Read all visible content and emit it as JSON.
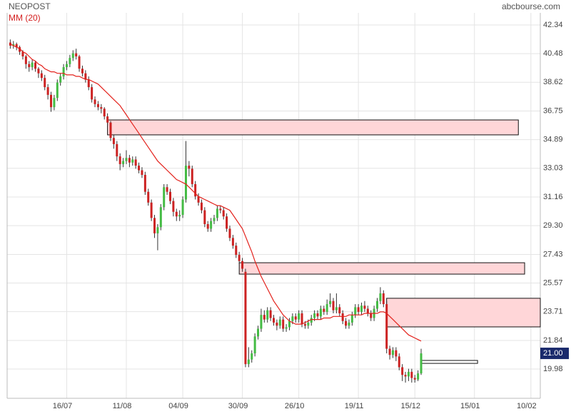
{
  "chart_data": {
    "type": "candlestick",
    "title": "NEOPOST",
    "source": "abcbourse.com",
    "up_color": "#44bb44",
    "down_color": "#cc2222",
    "open": [
      41.2,
      41.0,
      41.1,
      40.9,
      40.6,
      40.3,
      39.8,
      39.6,
      39.9,
      39.5,
      39.2,
      38.9,
      38.3,
      37.8,
      37.0,
      37.6,
      38.6,
      39.0,
      39.6,
      39.8,
      40.2,
      40.5,
      40.3,
      39.5,
      39.2,
      38.8,
      38.3,
      37.5,
      37.2,
      37.0,
      36.9,
      36.4,
      36.0,
      35.0,
      34.6,
      33.8,
      33.3,
      33.5,
      33.7,
      33.4,
      33.6,
      33.2,
      32.9,
      32.6,
      31.5,
      30.8,
      29.8,
      28.8,
      29.2,
      30.5,
      31.8,
      31.5,
      30.9,
      30.2,
      29.9,
      30.0,
      31.0,
      33.2,
      33.0,
      32.0,
      31.2,
      30.8,
      30.3,
      29.4,
      29.1,
      29.6,
      29.8,
      30.4,
      30.3,
      29.9,
      29.1,
      28.5,
      28.0,
      27.4,
      27.0,
      26.3,
      20.3,
      20.6,
      21.0,
      22.1,
      22.6,
      23.5,
      23.2,
      23.8,
      23.3,
      23.0,
      22.8,
      23.2,
      22.6,
      22.7,
      23.1,
      23.4,
      23.2,
      23.6,
      22.9,
      22.8,
      23.0,
      23.3,
      23.6,
      23.4,
      23.9,
      23.7,
      24.2,
      24.4,
      23.8,
      24.0,
      23.6,
      23.1,
      22.8,
      23.0,
      23.5,
      24.0,
      23.7,
      24.1,
      23.9,
      23.6,
      23.3,
      23.9,
      24.4,
      24.9,
      24.2,
      21.3,
      20.9,
      21.2,
      20.8,
      20.1,
      19.6,
      19.5,
      19.8,
      19.4,
      19.3,
      19.7
    ],
    "high": [
      41.4,
      41.3,
      41.2,
      41.0,
      40.7,
      40.4,
      40.0,
      40.1,
      40.0,
      39.6,
      39.4,
      39.1,
      38.5,
      38.0,
      37.8,
      38.8,
      39.2,
      39.8,
      40.0,
      40.4,
      40.7,
      40.8,
      40.4,
      39.7,
      39.4,
      39.0,
      38.5,
      37.7,
      37.4,
      37.2,
      37.0,
      36.6,
      36.1,
      35.2,
      34.8,
      34.0,
      33.7,
      34.2,
      33.9,
      33.8,
      33.8,
      33.4,
      33.1,
      32.8,
      31.7,
      31.0,
      30.0,
      29.4,
      30.7,
      32.0,
      32.0,
      31.7,
      31.1,
      30.4,
      30.3,
      31.2,
      34.8,
      33.5,
      33.2,
      32.2,
      31.4,
      31.0,
      30.5,
      29.6,
      29.8,
      30.0,
      30.6,
      30.6,
      30.5,
      30.1,
      29.3,
      28.7,
      28.2,
      27.6,
      27.2,
      26.5,
      21.4,
      21.2,
      22.3,
      22.8,
      23.9,
      23.8,
      24.0,
      24.0,
      23.5,
      23.2,
      23.4,
      23.4,
      22.9,
      23.3,
      23.6,
      23.6,
      23.8,
      23.8,
      23.1,
      23.2,
      23.5,
      23.8,
      23.8,
      24.1,
      24.1,
      24.5,
      24.9,
      24.6,
      24.9,
      24.2,
      23.8,
      23.3,
      23.2,
      23.7,
      24.2,
      24.2,
      24.3,
      24.4,
      24.1,
      23.8,
      24.1,
      24.6,
      25.3,
      25.1,
      24.4,
      21.5,
      21.4,
      21.4,
      21.0,
      20.3,
      19.8,
      20.0,
      20.0,
      19.6,
      19.9,
      21.3
    ],
    "low": [
      40.8,
      40.8,
      40.7,
      40.4,
      40.1,
      39.5,
      39.3,
      39.4,
      39.3,
      38.9,
      38.7,
      38.1,
      37.5,
      36.7,
      36.8,
      37.4,
      38.4,
      38.8,
      39.4,
      39.6,
      40.0,
      40.1,
      39.3,
      39.0,
      38.6,
      38.1,
      37.3,
      37.0,
      36.8,
      36.6,
      36.2,
      35.8,
      34.8,
      34.3,
      33.5,
      32.9,
      33.1,
      33.3,
      33.1,
      33.2,
      33.0,
      32.7,
      32.4,
      31.3,
      30.6,
      29.6,
      28.5,
      27.7,
      29.0,
      30.3,
      31.3,
      30.7,
      29.9,
      29.6,
      29.6,
      29.8,
      30.8,
      32.5,
      31.8,
      31.0,
      30.6,
      30.1,
      29.2,
      28.9,
      28.9,
      29.4,
      29.6,
      30.1,
      29.7,
      28.9,
      28.3,
      27.8,
      27.2,
      26.8,
      26.3,
      20.1,
      20.1,
      20.4,
      20.8,
      21.9,
      22.4,
      23.0,
      23.0,
      23.1,
      22.8,
      22.5,
      22.6,
      22.4,
      22.4,
      22.5,
      22.9,
      23.0,
      23.0,
      22.7,
      22.6,
      22.6,
      22.8,
      23.1,
      23.2,
      23.2,
      23.5,
      23.5,
      24.0,
      23.6,
      23.6,
      23.4,
      22.9,
      22.6,
      22.6,
      22.8,
      23.3,
      23.5,
      23.5,
      23.7,
      23.4,
      23.1,
      23.1,
      23.7,
      24.2,
      24.0,
      21.0,
      20.6,
      20.7,
      20.5,
      19.9,
      19.2,
      19.1,
      19.2,
      19.1,
      19.1,
      19.2,
      19.6
    ],
    "close": [
      41.0,
      41.1,
      40.9,
      40.6,
      40.3,
      39.8,
      39.6,
      39.9,
      39.5,
      39.2,
      38.9,
      38.3,
      37.8,
      37.0,
      37.6,
      38.6,
      39.0,
      39.6,
      39.8,
      40.2,
      40.5,
      40.3,
      39.5,
      39.2,
      38.8,
      38.3,
      37.5,
      37.2,
      37.0,
      36.9,
      36.4,
      36.0,
      35.0,
      34.6,
      33.8,
      33.3,
      33.5,
      33.7,
      33.4,
      33.6,
      33.2,
      32.9,
      32.6,
      31.5,
      30.8,
      29.8,
      28.8,
      29.2,
      30.5,
      31.8,
      31.5,
      30.9,
      30.2,
      29.9,
      30.0,
      31.0,
      33.2,
      33.0,
      32.0,
      31.2,
      30.8,
      30.3,
      29.4,
      29.1,
      29.6,
      29.8,
      30.4,
      30.3,
      29.9,
      29.1,
      28.5,
      28.0,
      27.4,
      27.0,
      26.5,
      20.3,
      20.6,
      21.0,
      22.1,
      22.6,
      23.5,
      23.2,
      23.8,
      23.3,
      23.0,
      22.8,
      23.2,
      22.6,
      22.7,
      23.1,
      23.4,
      23.2,
      23.6,
      22.9,
      22.8,
      23.0,
      23.3,
      23.6,
      23.4,
      23.9,
      23.7,
      24.2,
      24.4,
      23.8,
      24.0,
      23.6,
      23.1,
      22.8,
      23.0,
      23.5,
      24.0,
      23.7,
      24.1,
      23.9,
      23.6,
      23.3,
      23.9,
      24.4,
      24.9,
      24.2,
      21.3,
      20.9,
      21.2,
      20.8,
      20.1,
      19.6,
      19.5,
      19.8,
      19.4,
      19.3,
      19.7,
      21.0
    ],
    "series": [
      {
        "name": "MM (20)",
        "color": "#e3221c",
        "values": [
          41.1,
          41.0,
          40.9,
          40.8,
          40.6,
          40.5,
          40.3,
          40.1,
          40.0,
          39.8,
          39.7,
          39.5,
          39.4,
          39.3,
          39.3,
          39.2,
          39.2,
          39.2,
          39.1,
          39.1,
          39.1,
          39.0,
          39.0,
          38.9,
          38.8,
          38.8,
          38.7,
          38.6,
          38.5,
          38.3,
          38.1,
          37.9,
          37.7,
          37.5,
          37.3,
          37.1,
          36.8,
          36.5,
          36.2,
          35.9,
          35.6,
          35.3,
          35.0,
          34.7,
          34.4,
          34.1,
          33.8,
          33.5,
          33.3,
          33.1,
          32.9,
          32.7,
          32.5,
          32.3,
          32.2,
          32.1,
          32.0,
          31.8,
          31.6,
          31.4,
          31.2,
          31.1,
          31.0,
          30.9,
          30.8,
          30.7,
          30.6,
          30.6,
          30.5,
          30.4,
          30.3,
          30.0,
          29.7,
          29.4,
          29.1,
          28.6,
          28.1,
          27.6,
          27.0,
          26.5,
          26.0,
          25.6,
          25.2,
          24.8,
          24.4,
          24.1,
          23.8,
          23.5,
          23.3,
          23.1,
          23.0,
          22.9,
          22.9,
          22.9,
          23.0,
          23.1,
          23.2,
          23.2,
          23.2,
          23.2,
          23.3,
          23.3,
          23.3,
          23.4,
          23.4,
          23.4,
          23.4,
          23.4,
          23.5,
          23.5,
          23.5,
          23.5,
          23.5,
          23.6,
          23.6,
          23.6,
          23.6,
          23.6,
          23.7,
          23.7,
          23.6,
          23.4,
          23.2,
          23.0,
          22.8,
          22.6,
          22.4,
          22.2,
          22.1,
          22.0,
          21.9,
          21.8
        ]
      }
    ],
    "zones": [
      {
        "x": [
          31,
          162
        ],
        "y": [
          35.2,
          36.17
        ],
        "color": "#ffd6d8"
      },
      {
        "x": [
          73,
          164
        ],
        "y": [
          26.15,
          26.89
        ],
        "color": "#ffd6d8"
      },
      {
        "x": [
          120,
          169
        ],
        "y": [
          22.72,
          24.58
        ],
        "color": "#ffd6d8"
      },
      {
        "x": [
          131,
          149
        ],
        "y": [
          20.35,
          20.54
        ],
        "color": "#ffffff"
      }
    ],
    "last_value": {
      "value": 21.0,
      "label": "21.00"
    },
    "xlim": [
      -1,
      169
    ],
    "ylim": [
      18.08,
      43.13
    ],
    "xticks": [
      {
        "value": 18,
        "label": "16/07"
      },
      {
        "value": 37,
        "label": "11/08"
      },
      {
        "value": 55,
        "label": "04/09"
      },
      {
        "value": 74,
        "label": "30/09"
      },
      {
        "value": 92,
        "label": "26/10"
      },
      {
        "value": 111,
        "label": "19/11"
      },
      {
        "value": 129,
        "label": "15/12"
      },
      {
        "value": 148,
        "label": "15/01"
      },
      {
        "value": 166,
        "label": "10/02"
      }
    ],
    "yticks": [
      42.34,
      40.48,
      38.62,
      36.75,
      34.89,
      33.03,
      31.16,
      {
        "value": 29.3,
        "label": "29.30"
      },
      27.43,
      25.57,
      23.71,
      21.84,
      19.98
    ],
    "grid": true
  }
}
